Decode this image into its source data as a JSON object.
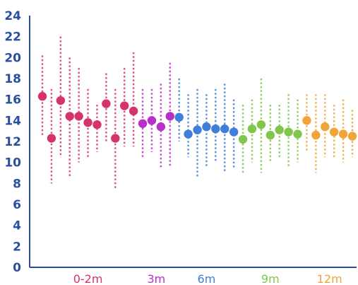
{
  "chart_data": {
    "type": "scatter",
    "title": "",
    "xlabel": "",
    "ylabel": "",
    "ylim": [
      0,
      24
    ],
    "y_ticks": [
      "0",
      "2",
      "4",
      "6",
      "8",
      "10",
      "12",
      "14",
      "16",
      "18",
      "20",
      "22",
      "24"
    ],
    "grid": false,
    "legend": "none",
    "axis_color": "#2b4fa0",
    "groups": [
      {
        "label": "0-2m",
        "color": "#d6336c",
        "points": [
          {
            "y": 16.3,
            "low": 12.5,
            "high": 20.2
          },
          {
            "y": 12.3,
            "low": 8.0,
            "high": 17.0
          },
          {
            "y": 15.9,
            "low": 10.5,
            "high": 22.0
          },
          {
            "y": 14.4,
            "low": 8.5,
            "high": 20.0
          },
          {
            "y": 14.4,
            "low": 10.0,
            "high": 19.0
          },
          {
            "y": 13.8,
            "low": 10.5,
            "high": 17.0
          },
          {
            "y": 13.6,
            "low": 11.0,
            "high": 15.5
          },
          {
            "y": 15.6,
            "low": 12.0,
            "high": 18.5
          },
          {
            "y": 12.3,
            "low": 7.5,
            "high": 17.0
          },
          {
            "y": 15.4,
            "low": 11.5,
            "high": 19.0
          },
          {
            "y": 14.9,
            "low": 11.5,
            "high": 20.5
          }
        ]
      },
      {
        "label": "3m",
        "color": "#b82fc9",
        "points": [
          {
            "y": 13.7,
            "low": 10.5,
            "high": 17.0
          },
          {
            "y": 14.0,
            "low": 11.0,
            "high": 17.0
          },
          {
            "y": 13.4,
            "low": 9.5,
            "high": 17.5
          },
          {
            "y": 14.4,
            "low": 9.5,
            "high": 19.5
          }
        ]
      },
      {
        "label": "6m",
        "color": "#3f7fd9",
        "points": [
          {
            "y": 14.3,
            "low": 12.0,
            "high": 18.0
          },
          {
            "y": 12.7,
            "low": 10.5,
            "high": 16.5
          },
          {
            "y": 13.1,
            "low": 8.5,
            "high": 17.0
          },
          {
            "y": 13.4,
            "low": 9.5,
            "high": 16.5
          },
          {
            "y": 13.2,
            "low": 10.0,
            "high": 17.0
          },
          {
            "y": 13.2,
            "low": 9.0,
            "high": 17.5
          },
          {
            "y": 12.9,
            "low": 9.5,
            "high": 16.0
          }
        ]
      },
      {
        "label": "9m",
        "color": "#7fc64a",
        "points": [
          {
            "y": 12.2,
            "low": 9.0,
            "high": 15.5
          },
          {
            "y": 13.2,
            "low": 10.0,
            "high": 16.0
          },
          {
            "y": 13.6,
            "low": 9.0,
            "high": 18.0
          },
          {
            "y": 12.6,
            "low": 10.0,
            "high": 15.5
          },
          {
            "y": 13.1,
            "low": 10.5,
            "high": 15.5
          },
          {
            "y": 12.9,
            "low": 9.5,
            "high": 16.5
          },
          {
            "y": 12.7,
            "low": 10.0,
            "high": 16.0
          }
        ]
      },
      {
        "label": "12m",
        "color": "#f0a43a",
        "points": [
          {
            "y": 14.0,
            "low": 11.0,
            "high": 16.5
          },
          {
            "y": 12.6,
            "low": 9.0,
            "high": 16.5
          },
          {
            "y": 13.4,
            "low": 10.5,
            "high": 16.5
          },
          {
            "y": 12.9,
            "low": 10.5,
            "high": 15.5
          },
          {
            "y": 12.7,
            "low": 10.0,
            "high": 16.0
          },
          {
            "y": 12.5,
            "low": 10.5,
            "high": 15.0
          }
        ]
      }
    ]
  }
}
